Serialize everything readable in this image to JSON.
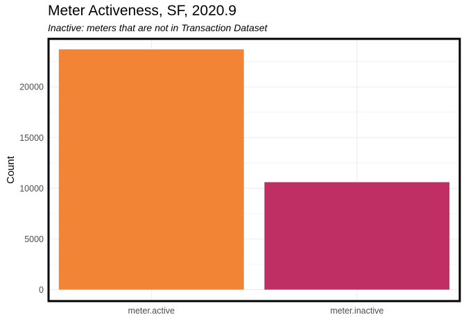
{
  "chart_data": {
    "type": "bar",
    "title": "Meter Activeness, SF, 2020.9",
    "subtitle": "Inactive: meters that are not in Transaction Dataset",
    "xlabel": "",
    "ylabel": "Count",
    "categories": [
      "meter.active",
      "meter.inactive"
    ],
    "values": [
      23700,
      10600
    ],
    "colors": [
      "#F28535",
      "#C02F64"
    ],
    "ylim": [
      0,
      24800
    ],
    "yticks": [
      0,
      5000,
      10000,
      15000,
      20000
    ],
    "grid": true,
    "legend": "none"
  }
}
